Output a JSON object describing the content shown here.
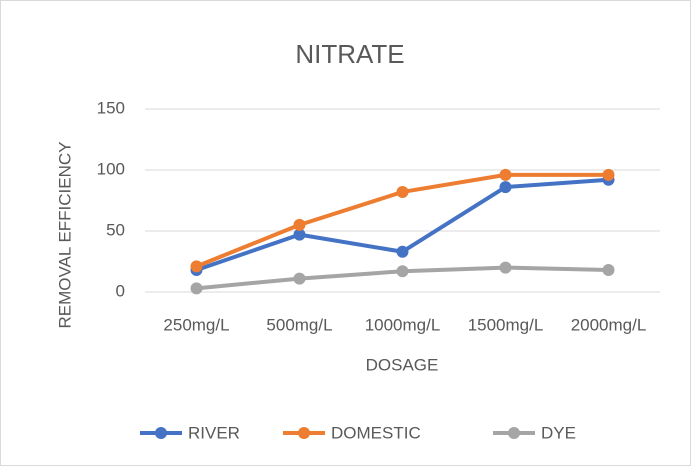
{
  "chart_data": {
    "type": "line",
    "title": "NITRATE",
    "x_label": "DOSAGE",
    "y_label": "REMOVAL EFFICIENCY",
    "categories": [
      "250mg/L",
      "500mg/L",
      "1000mg/L",
      "1500mg/L",
      "2000mg/L"
    ],
    "series": [
      {
        "name": "RIVER",
        "color": "#4472c4",
        "values": [
          18,
          47,
          33,
          86,
          92
        ]
      },
      {
        "name": "DOMESTIC",
        "color": "#ed7d31",
        "values": [
          21,
          55,
          82,
          96,
          96
        ]
      },
      {
        "name": "DYE",
        "color": "#a5a5a5",
        "values": [
          3,
          11,
          17,
          20,
          18
        ]
      }
    ],
    "ylim": [
      0,
      150
    ],
    "yticks": [
      0,
      50,
      100,
      150
    ],
    "grid": true,
    "legend": "bottom"
  }
}
